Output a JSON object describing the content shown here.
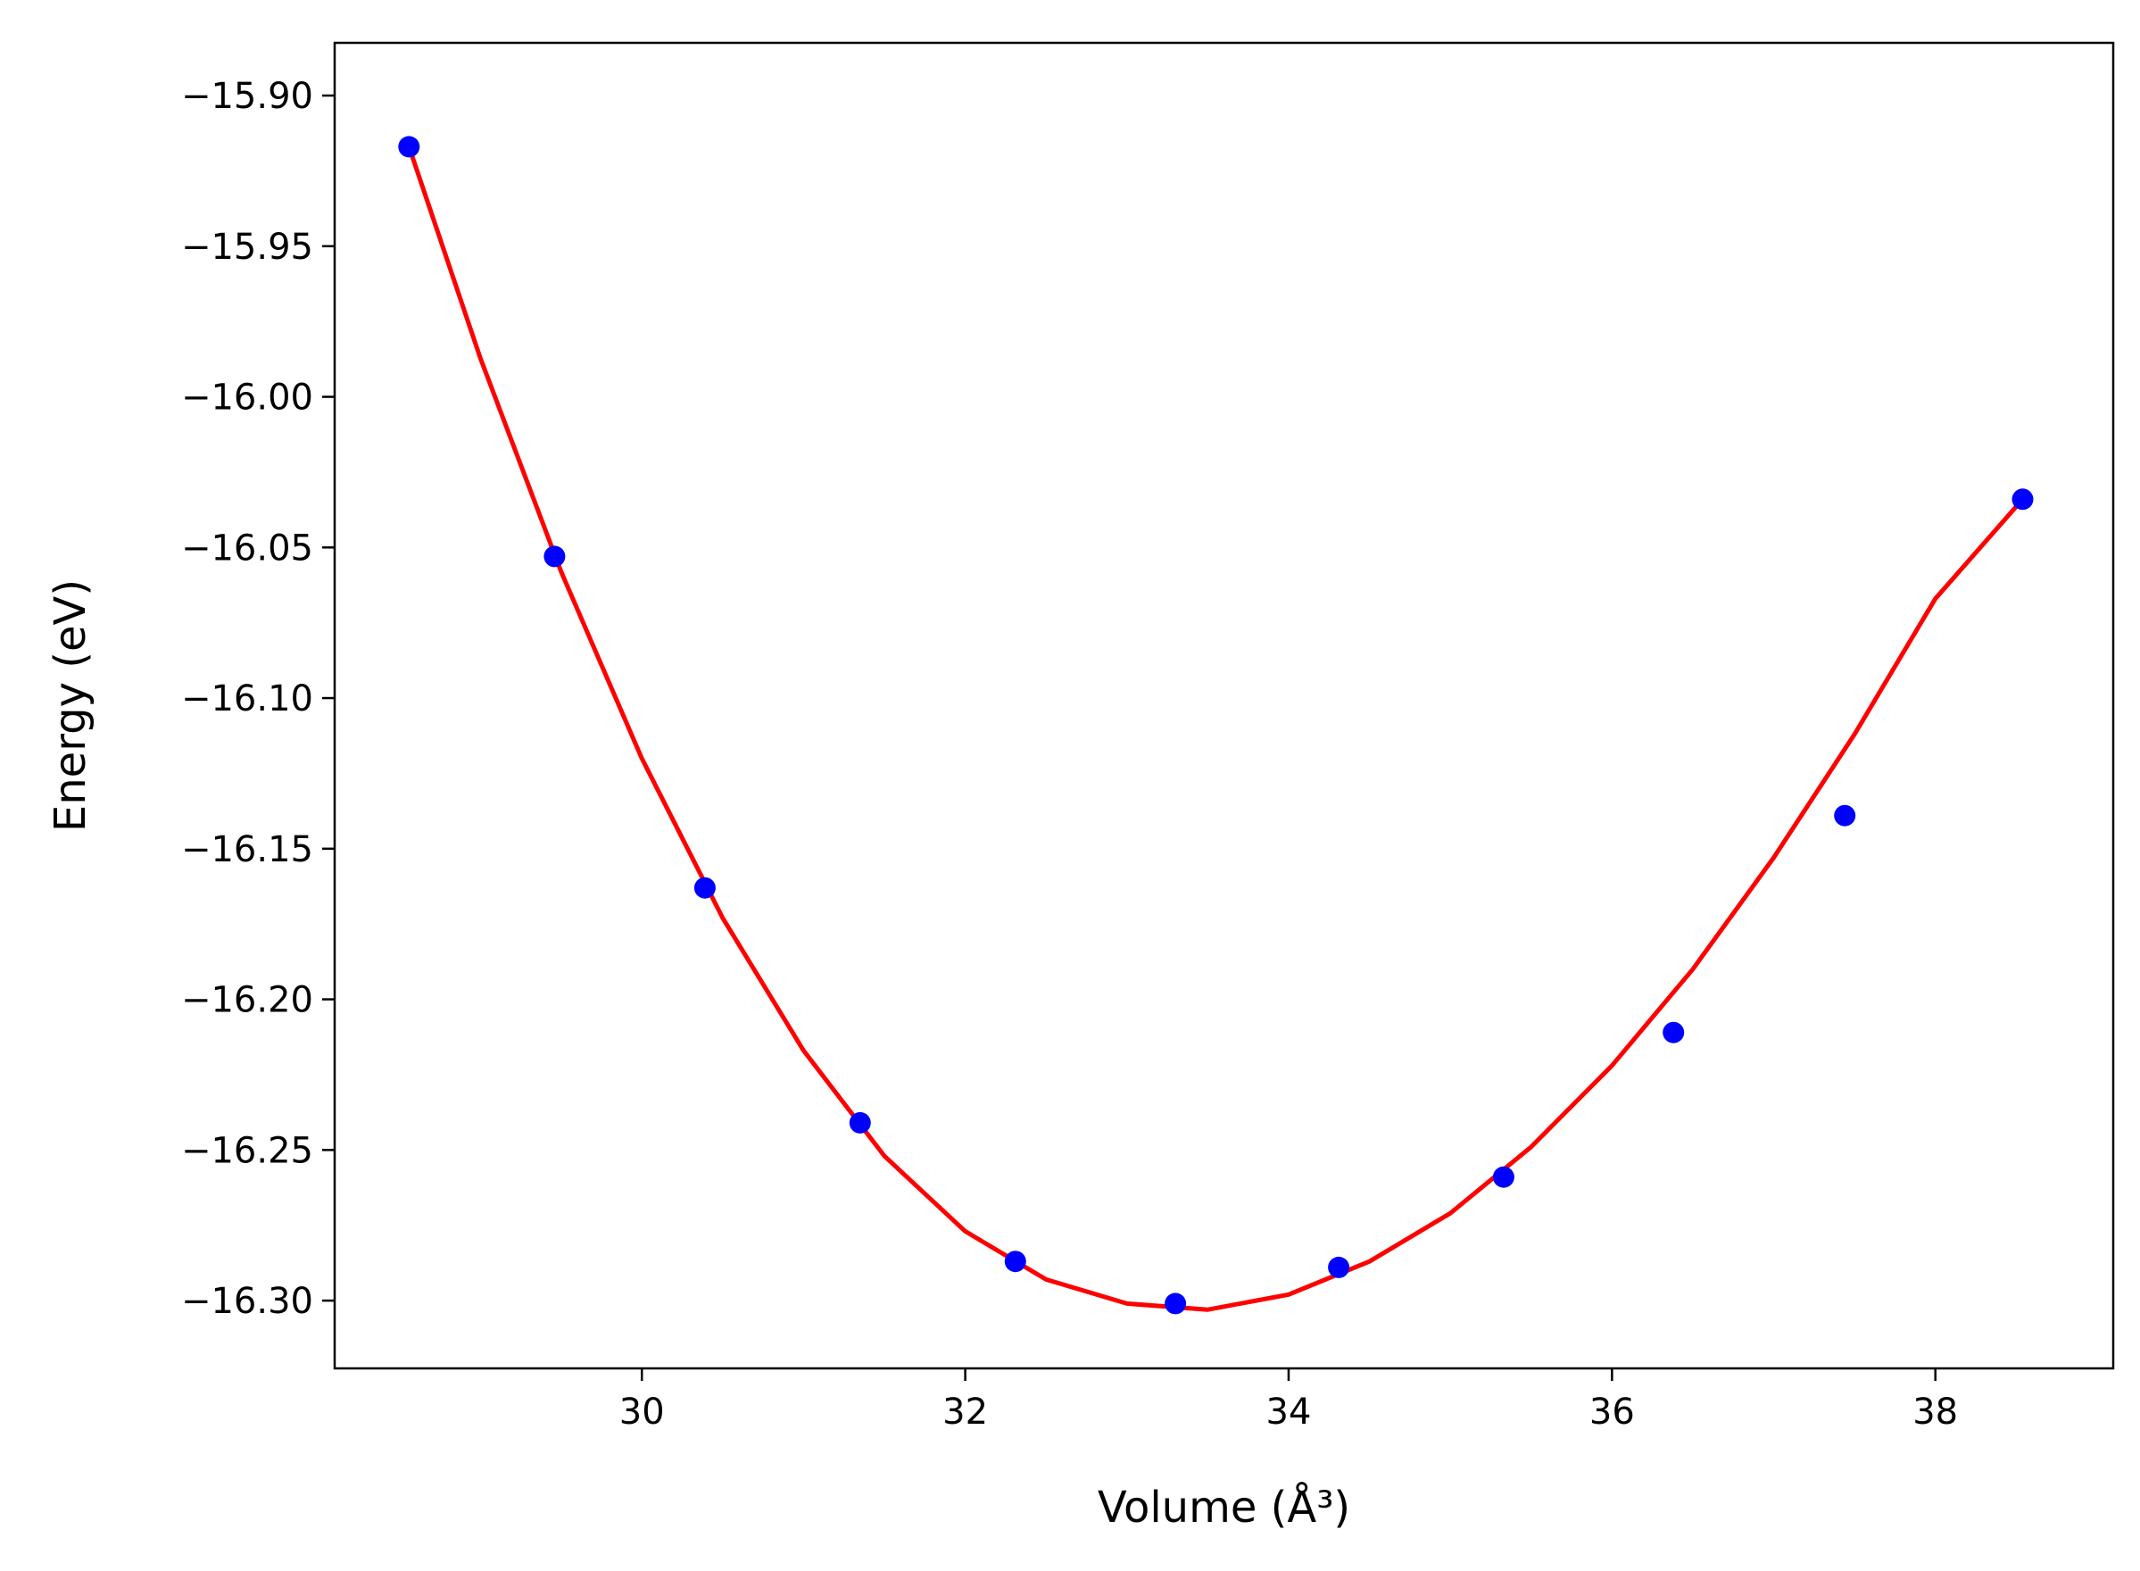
{
  "chart_data": {
    "type": "scatter",
    "title": "",
    "xlabel": "Volume (Å³)",
    "ylabel": "Energy (eV)",
    "xlim": [
      28.1,
      39.1
    ],
    "ylim": [
      -16.3225,
      -15.8825
    ],
    "xticks": [
      30,
      32,
      34,
      36,
      38
    ],
    "xtick_labels": [
      "30",
      "32",
      "34",
      "36",
      "38"
    ],
    "yticks": [
      -15.9,
      -15.95,
      -16.0,
      -16.05,
      -16.1,
      -16.15,
      -16.2,
      -16.25,
      -16.3
    ],
    "ytick_labels": [
      "−15.90",
      "−15.95",
      "−16.00",
      "−16.05",
      "−16.10",
      "−16.15",
      "−16.20",
      "−16.25",
      "−16.30"
    ],
    "grid": false,
    "series": [
      {
        "kind": "points",
        "color": "#0000ff",
        "x": [
          28.56,
          29.46,
          30.39,
          31.35,
          32.31,
          33.3,
          34.31,
          35.33,
          36.38,
          37.44,
          38.54
        ],
        "y": [
          -15.917,
          -16.053,
          -16.163,
          -16.241,
          -16.287,
          -16.301,
          -16.289,
          -16.259,
          -16.211,
          -16.139,
          -16.034
        ]
      },
      {
        "kind": "fit-line",
        "color": "#ff0000",
        "x": [
          28.56,
          29.0,
          29.5,
          30.0,
          30.5,
          31.0,
          31.5,
          32.0,
          32.5,
          33.0,
          33.5,
          34.0,
          34.5,
          35.0,
          35.5,
          36.0,
          36.5,
          37.0,
          37.5,
          38.0,
          38.54
        ],
        "y": [
          -15.917,
          -15.987,
          -16.058,
          -16.12,
          -16.173,
          -16.217,
          -16.252,
          -16.277,
          -16.293,
          -16.301,
          -16.303,
          -16.298,
          -16.287,
          -16.271,
          -16.249,
          -16.222,
          -16.19,
          -16.153,
          -16.112,
          -16.067,
          -16.034
        ]
      }
    ]
  }
}
